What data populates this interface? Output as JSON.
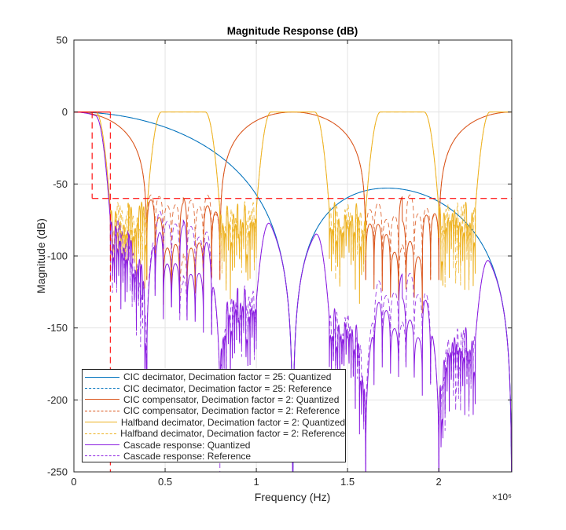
{
  "chart_data": {
    "type": "line",
    "title": "Magnitude Response (dB)",
    "xlabel": "Frequency (Hz)",
    "ylabel": "Magnitude (dB)",
    "x_exponent_label": "×10⁶",
    "xlim": [
      0,
      2400000
    ],
    "ylim": [
      -250,
      50
    ],
    "xticks": [
      0,
      500000,
      1000000,
      1500000,
      2000000
    ],
    "xtick_labels": [
      "0",
      "0.5",
      "1",
      "1.5",
      "2"
    ],
    "yticks": [
      50,
      0,
      -50,
      -100,
      -150,
      -200,
      -250
    ],
    "ytick_labels": [
      "50",
      "0",
      "-50",
      "-100",
      "-150",
      "-200",
      "-250"
    ],
    "grid": true,
    "legend_position": "bottom-left",
    "series": [
      {
        "name": "CIC decimator, Decimation factor = 25: Quantized",
        "color": "#0072BD",
        "style": "solid",
        "model": {
          "kind": "cic",
          "fs_hz": 30000000,
          "R": 25,
          "N": 4
        },
        "key_points": [
          [
            0,
            0
          ],
          [
            600000,
            -15.7
          ],
          [
            1200000,
            -250
          ],
          [
            1730000,
            -53
          ],
          [
            2400000,
            -250
          ]
        ]
      },
      {
        "name": "CIC decimator, Decimation factor = 25: Reference",
        "color": "#0072BD",
        "style": "dashed",
        "model": {
          "kind": "cic",
          "fs_hz": 30000000,
          "R": 25,
          "N": 4
        }
      },
      {
        "name": "CIC compensator, Decimation factor = 2: Quantized",
        "color": "#D95319",
        "style": "solid",
        "model": {
          "kind": "comp",
          "period_hz": 1200000,
          "null_hz": 400000,
          "seed": 1
        },
        "key_points": [
          [
            0,
            0
          ],
          [
            400000,
            -60
          ],
          [
            800000,
            -60
          ],
          [
            1200000,
            0
          ],
          [
            1600000,
            -60
          ],
          [
            2000000,
            -60
          ],
          [
            2400000,
            0
          ]
        ]
      },
      {
        "name": "CIC compensator, Decimation factor = 2: Reference",
        "color": "#D95319",
        "style": "dashed",
        "model": {
          "kind": "comp",
          "period_hz": 1200000,
          "null_hz": 400000,
          "seed": 2
        }
      },
      {
        "name": "Halfband decimator, Decimation factor = 2: Quantized",
        "color": "#EDB120",
        "style": "solid",
        "model": {
          "kind": "hb",
          "period_hz": 600000,
          "seed": 3
        },
        "key_points": [
          [
            0,
            0
          ],
          [
            200000,
            -65
          ],
          [
            600000,
            0
          ],
          [
            1200000,
            0
          ],
          [
            1800000,
            0
          ],
          [
            2400000,
            0
          ]
        ]
      },
      {
        "name": "Halfband decimator, Decimation factor = 2: Reference",
        "color": "#EDB120",
        "style": "dashed",
        "model": {
          "kind": "hb",
          "period_hz": 600000,
          "seed": 4
        }
      },
      {
        "name": "Cascade response: Quantized",
        "color": "#8A1DE0",
        "style": "solid",
        "model": {
          "kind": "cascade",
          "seeds": [
            1,
            3
          ]
        }
      },
      {
        "name": "Cascade response: Reference",
        "color": "#8A1DE0",
        "style": "dashed",
        "model": {
          "kind": "cascade",
          "seeds": [
            2,
            4
          ]
        }
      }
    ],
    "mask": {
      "color": "#FF0000",
      "passband_edge_hz": 100000,
      "stopband_edge_hz": 200000,
      "stopband_atten_db": -60,
      "passband_db": 0
    }
  }
}
